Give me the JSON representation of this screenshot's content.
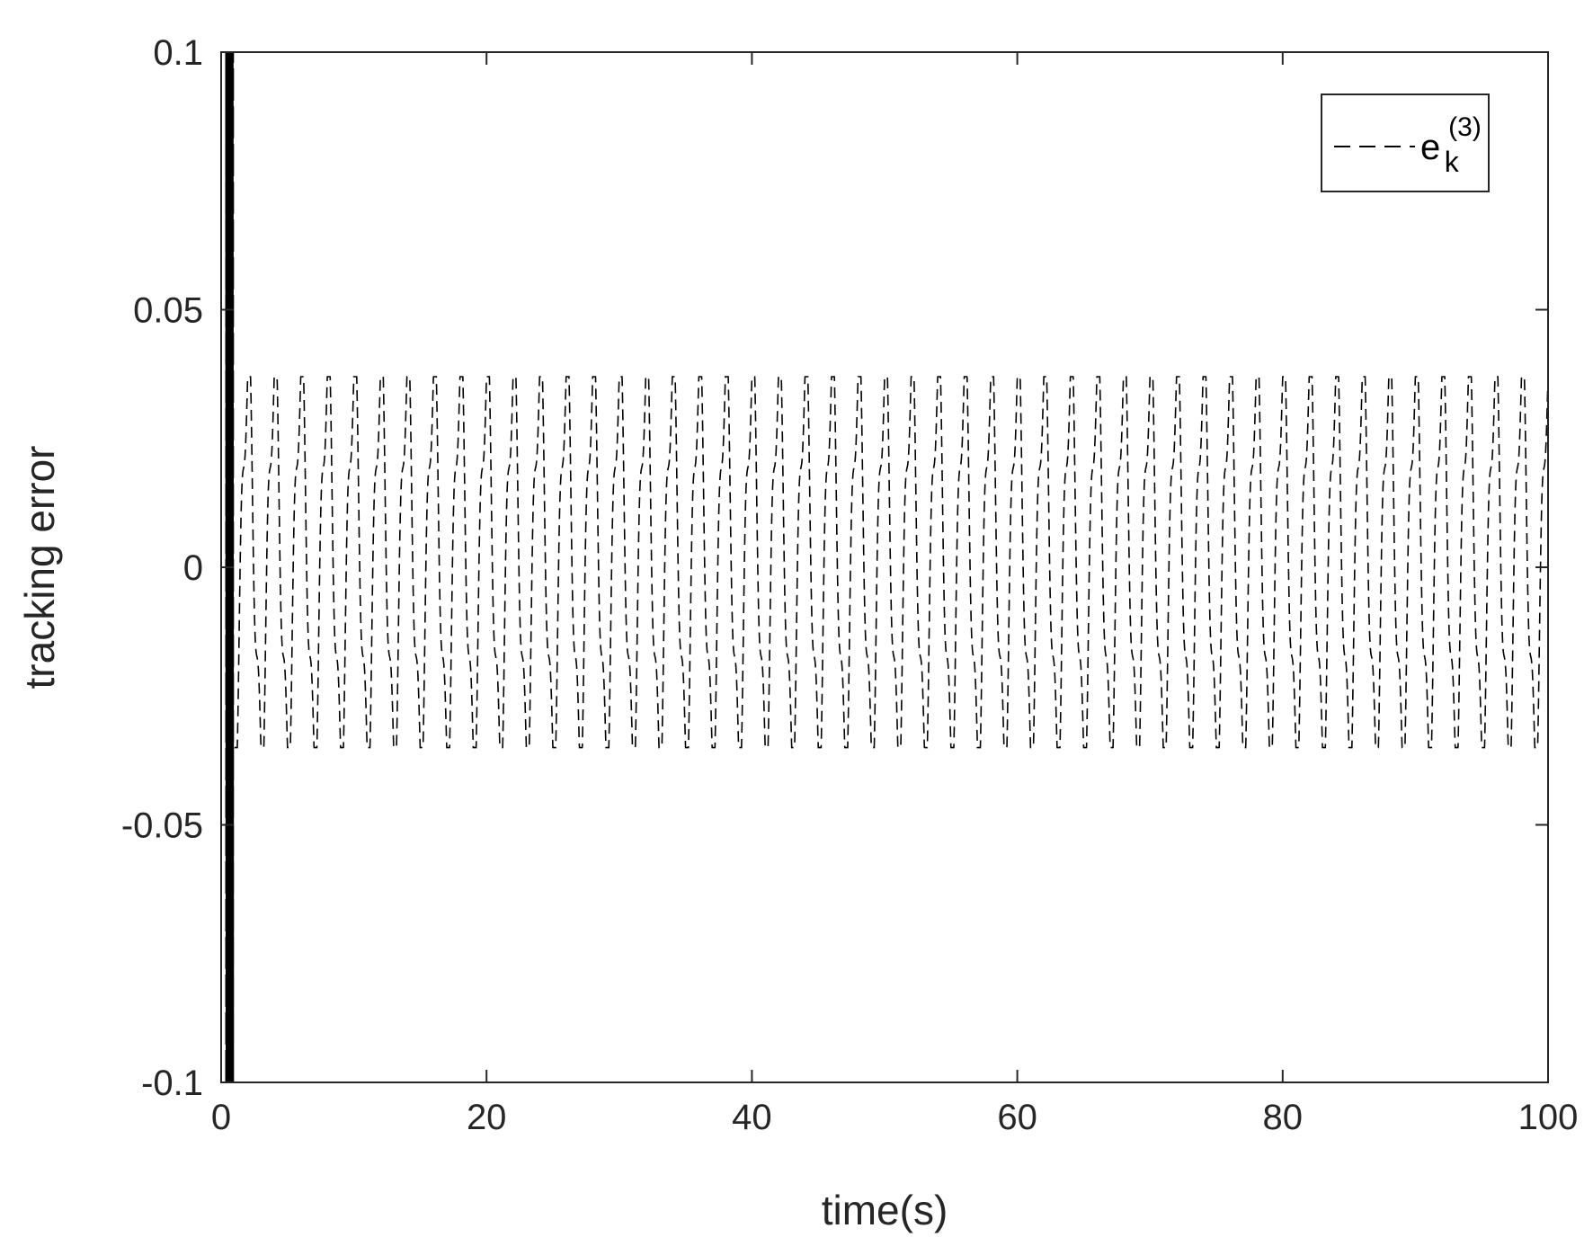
{
  "chart_data": {
    "type": "line",
    "title": "",
    "xlabel": "time(s)",
    "ylabel": "tracking error",
    "xlim": [
      0,
      100
    ],
    "ylim": [
      -0.1,
      0.1
    ],
    "x_ticks": [
      0,
      20,
      40,
      60,
      80,
      100
    ],
    "x_tick_labels": [
      "0",
      "20",
      "40",
      "60",
      "80",
      "100"
    ],
    "y_ticks": [
      -0.1,
      -0.05,
      0,
      0.05,
      0.1
    ],
    "y_tick_labels": [
      "-0.1",
      "-0.05",
      "0",
      "0.05",
      "0.1"
    ],
    "grid": false,
    "legend": {
      "placement": "top-right",
      "entries": [
        {
          "base": "e",
          "subscript": "k",
          "superscript": "(3)",
          "line_style": "dashed"
        }
      ]
    },
    "series": [
      {
        "line_style": "dashed",
        "color": "#000000",
        "initial_transient": {
          "x_range": [
            0,
            1.0
          ],
          "y_range": [
            -0.1,
            0.1
          ]
        },
        "waveform": {
          "x_start": 1.0,
          "x_end": 100,
          "period": 2.0,
          "upper_envelope": 0.037,
          "lower_envelope": -0.035,
          "first_peak_x": 4.0,
          "first_trough_x": 2.0,
          "inner_oscillation_amplitude": 0.009
        }
      }
    ]
  },
  "colors": {
    "axis": "#262626",
    "line": "#000000",
    "background": "#ffffff"
  }
}
